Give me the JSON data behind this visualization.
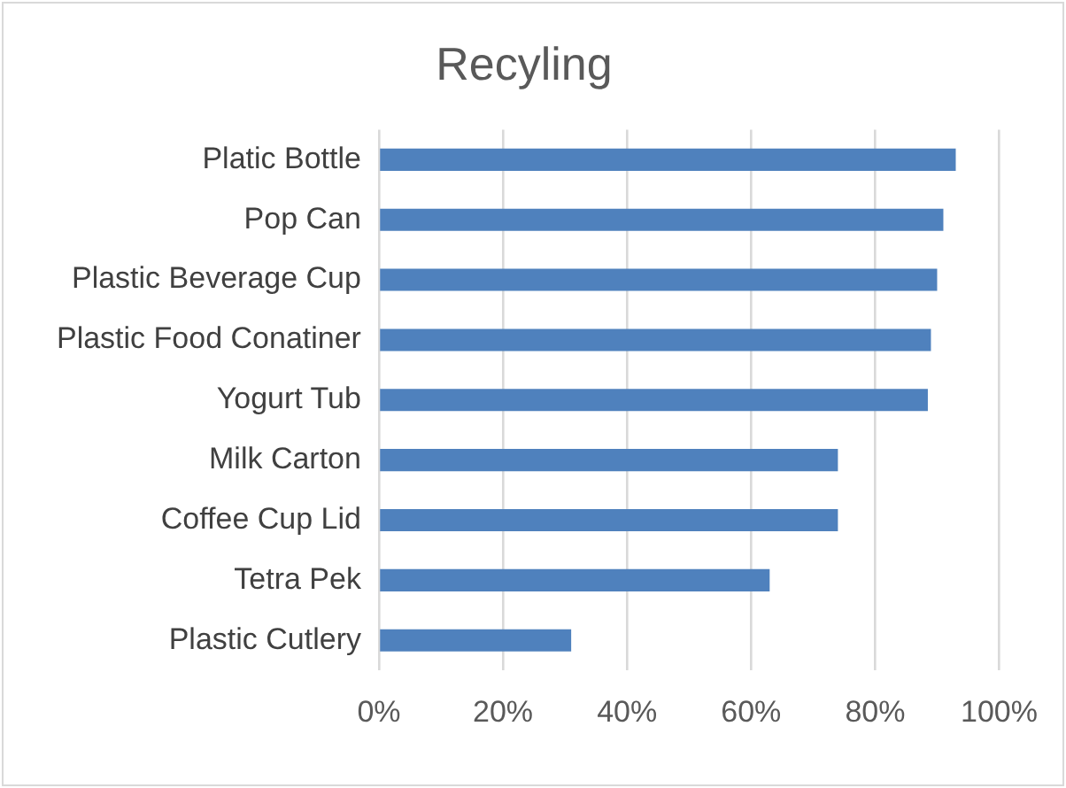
{
  "chart_data": {
    "type": "bar",
    "orientation": "horizontal",
    "title": "Recyling",
    "categories": [
      "Platic Bottle",
      "Pop Can",
      "Plastic Beverage Cup",
      "Plastic Food Conatiner",
      "Yogurt Tub",
      "Milk Carton",
      "Coffee Cup Lid",
      "Tetra Pek",
      "Plastic Cutlery"
    ],
    "values": [
      93,
      91,
      90,
      89,
      88.5,
      74,
      74,
      63,
      31
    ],
    "color": "#4f81bd",
    "xlim": [
      0,
      100
    ],
    "xticks": [
      {
        "value": 0,
        "label": "0%"
      },
      {
        "value": 20,
        "label": "20%"
      },
      {
        "value": 40,
        "label": "40%"
      },
      {
        "value": 60,
        "label": "60%"
      },
      {
        "value": 80,
        "label": "80%"
      },
      {
        "value": 100,
        "label": "100%"
      }
    ],
    "grid": "x",
    "legend": false
  }
}
